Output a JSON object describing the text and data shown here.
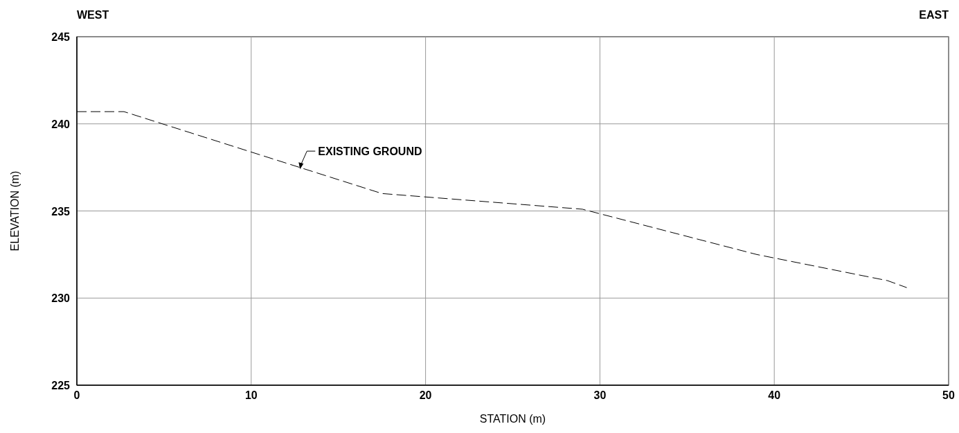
{
  "chart_data": {
    "type": "line",
    "xlabel": "STATION (m)",
    "ylabel": "ELEVATION (m)",
    "x": [
      0,
      2.7,
      17.5,
      29,
      39,
      46.5,
      47.6
    ],
    "series": [
      {
        "color": "#000000",
        "values": [
          240.7,
          240.7,
          236.0,
          235.1,
          232.5,
          231.0,
          230.6
        ]
      }
    ],
    "xlim": [
      0,
      50
    ],
    "xticks": [
      0,
      10,
      20,
      30,
      40,
      50
    ],
    "ylim": [
      225,
      245
    ],
    "yticks": [
      225,
      230,
      235,
      240,
      245
    ],
    "grid": true,
    "marker": "none",
    "line_style": "dashed",
    "annotations": [
      "WEST",
      "EAST",
      {
        "text": "EXISTING GROUND",
        "x": 12.8,
        "y": 237.4
      }
    ]
  }
}
